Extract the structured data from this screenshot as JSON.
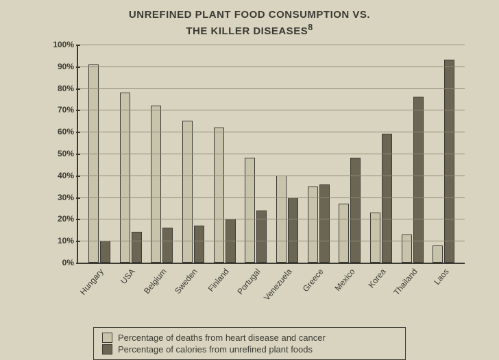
{
  "title_line1": "UNREFINED PLANT FOOD CONSUMPTION VS.",
  "title_line2": "THE KILLER DISEASES",
  "title_sup": "8",
  "title_fontsize": 15,
  "chart": {
    "type": "bar",
    "ylim": [
      0,
      100
    ],
    "ytick_step": 10,
    "ytick_suffix": "%",
    "background_color": "#d8d4c0",
    "grid_color": "#8e8a76",
    "axis_color": "#3a3a33",
    "bar_colors": {
      "light": "#c8c3ab",
      "dark": "#6b6654"
    },
    "bar_border": "#3a3a33",
    "categories": [
      "Hungary",
      "USA",
      "Belgium",
      "Sweden",
      "Finland",
      "Portugal",
      "Venezuela",
      "Greece",
      "Mexico",
      "Korea",
      "Thailand",
      "Laos"
    ],
    "series": [
      {
        "key": "deaths",
        "color": "light",
        "values": [
          91,
          78,
          72,
          65,
          62,
          48,
          40,
          35,
          27,
          23,
          13,
          8
        ]
      },
      {
        "key": "plant",
        "color": "dark",
        "values": [
          10,
          14,
          16,
          17,
          20,
          24,
          30,
          36,
          48,
          59,
          76,
          93
        ]
      }
    ]
  },
  "legend": {
    "items": [
      {
        "color": "light",
        "label": "Percentage of deaths from heart disease and cancer"
      },
      {
        "color": "dark",
        "label": "Percentage of calories from unrefined plant foods"
      }
    ]
  }
}
